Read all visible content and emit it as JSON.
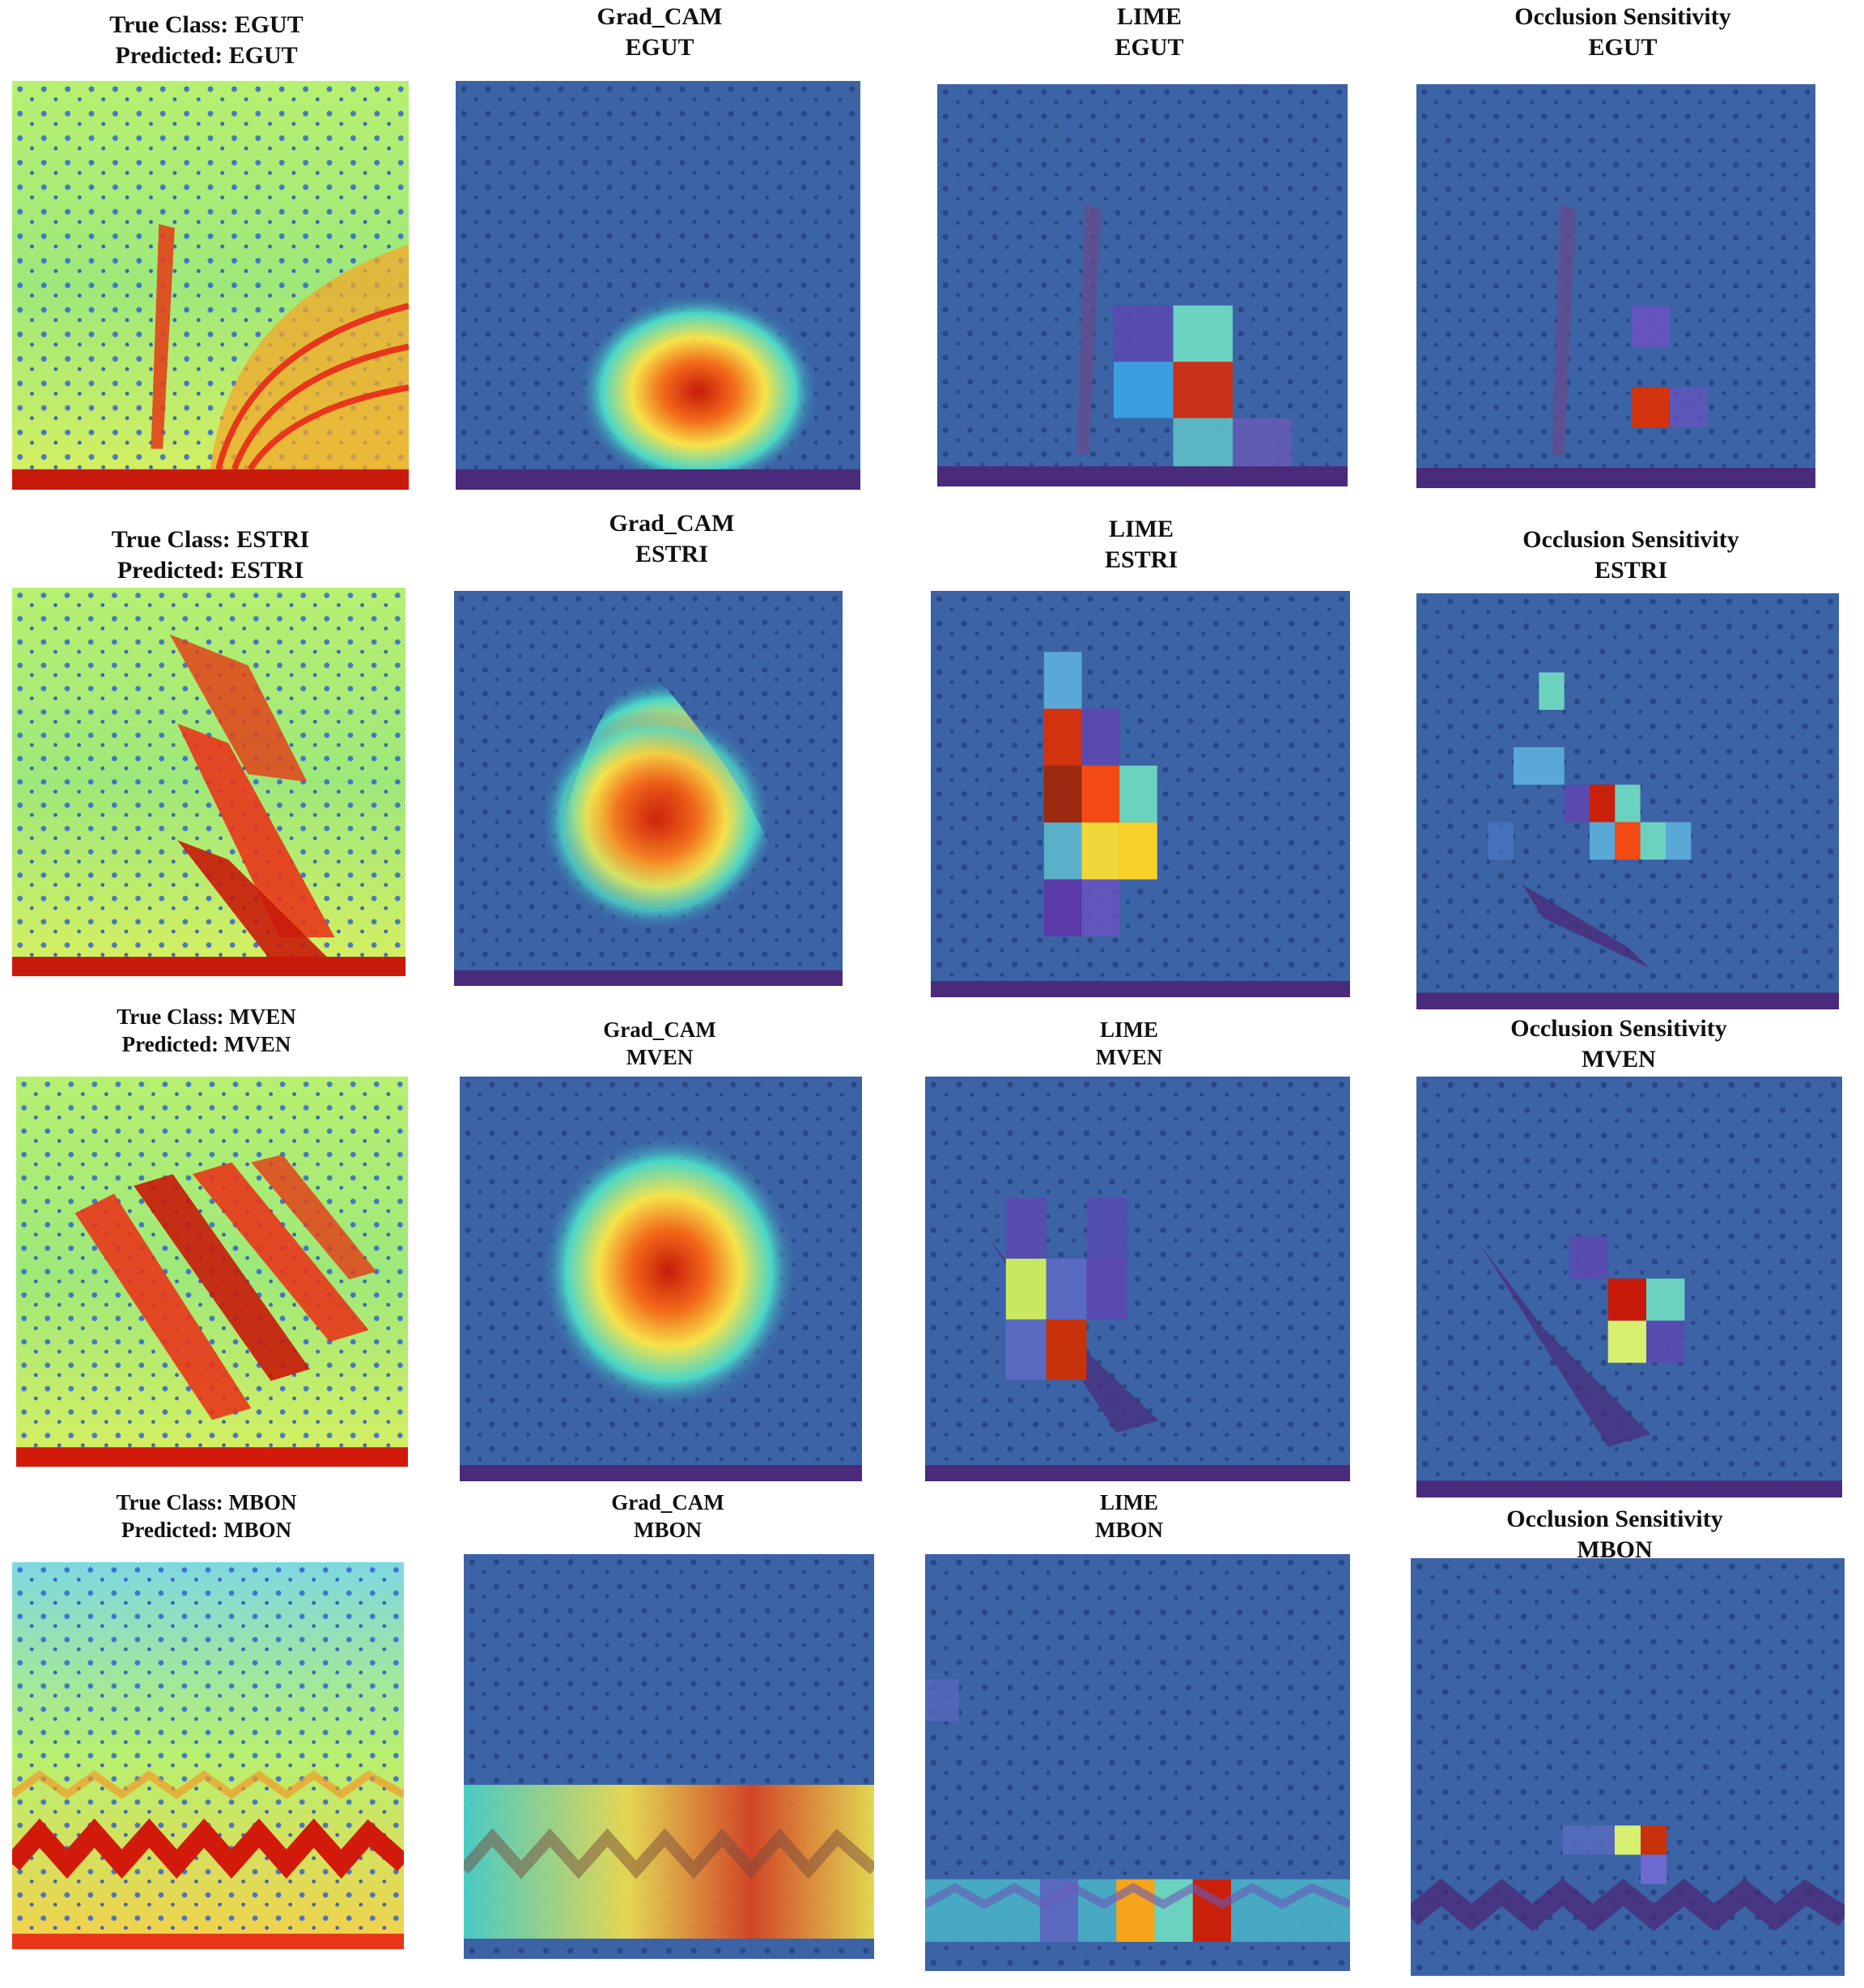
{
  "rows": [
    {
      "cls": "EGUT",
      "titles": [
        [
          "True Class: EGUT",
          "Predicted: EGUT"
        ],
        [
          "Grad_CAM",
          "EGUT"
        ],
        [
          "LIME",
          "EGUT"
        ],
        [
          "Occlusion Sensitivity",
          "EGUT"
        ]
      ]
    },
    {
      "cls": "ESTRI",
      "titles": [
        [
          "True Class: ESTRI",
          "Predicted: ESTRI"
        ],
        [
          "Grad_CAM",
          "ESTRI"
        ],
        [
          "LIME",
          "ESTRI"
        ],
        [
          "Occlusion Sensitivity",
          "ESTRI"
        ]
      ]
    },
    {
      "cls": "MVEN",
      "titles": [
        [
          "True Class: MVEN",
          "Predicted: MVEN"
        ],
        [
          "Grad_CAM",
          "MVEN"
        ],
        [
          "LIME",
          "MVEN"
        ],
        [
          "Occlusion Sensitivity",
          "MVEN"
        ]
      ]
    },
    {
      "cls": "MBON",
      "titles": [
        [
          "True Class: MBON",
          "Predicted: MBON"
        ],
        [
          "Grad_CAM",
          "MBON"
        ],
        [
          "LIME",
          "MBON"
        ],
        [
          "Occlusion Sensitivity",
          "MBON"
        ]
      ]
    }
  ],
  "colors": {
    "spectrogram_bg": "#7fe07a",
    "spectrogram_hot": "#d21a0a",
    "overlay_bg": "#3c64a8",
    "heat_core": "#c81a0a",
    "heat_mid": "#f6e34a",
    "heat_outer": "#4ad6c8"
  }
}
